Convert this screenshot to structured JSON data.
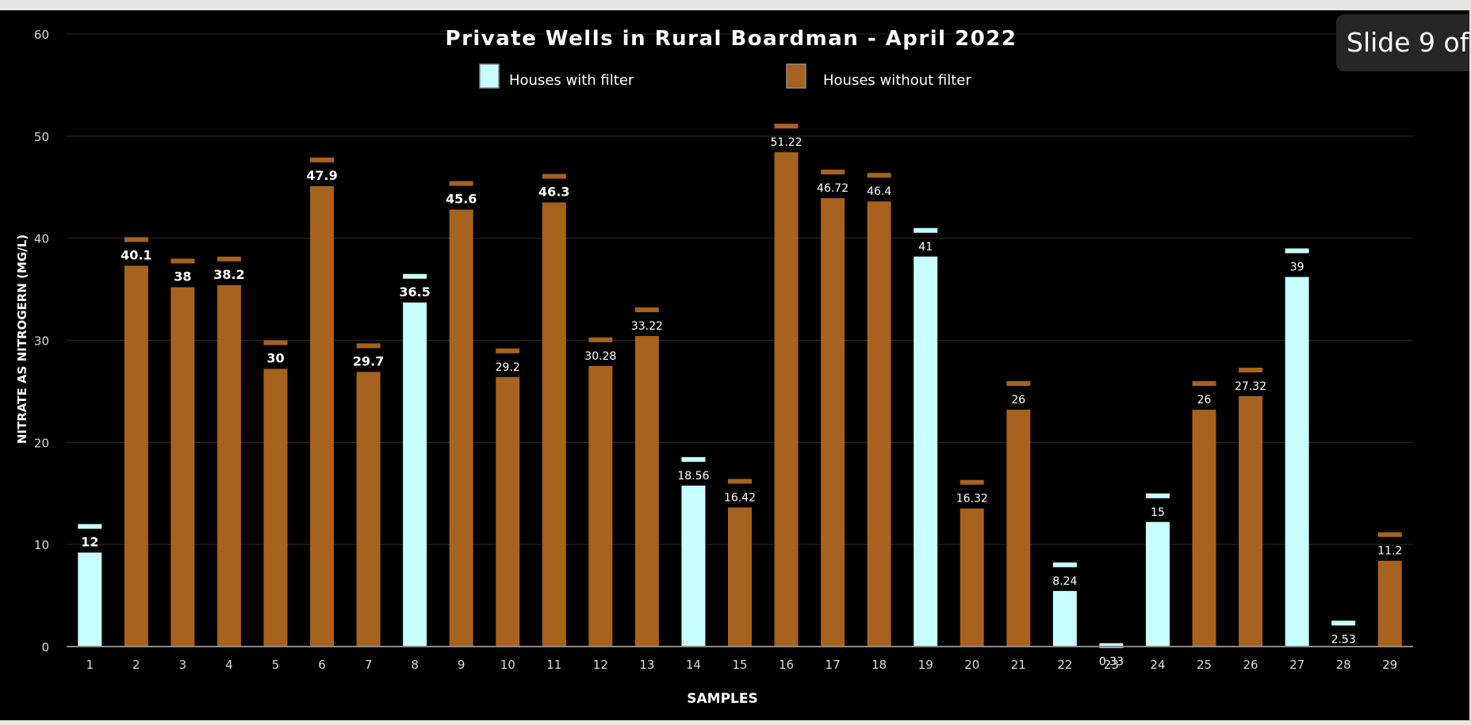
{
  "slide_indicator": "Slide 9 of",
  "colors": {
    "background": "#000000",
    "filter": "#c8ffff",
    "no_filter": "#a8621f",
    "text": "#ffffff",
    "axis_text": "#d9d9d9",
    "gridline": "#2a2a2a"
  },
  "chart_data": {
    "type": "bar",
    "title": "Private Wells in Rural Boardman - April 2022",
    "xlabel": "SAMPLES",
    "ylabel": "NITRATE AS NITROGERN  (MG/L)",
    "ylim": [
      0,
      60
    ],
    "yticks": [
      0,
      10,
      20,
      30,
      40,
      50,
      60
    ],
    "grid": true,
    "legend_position": "top",
    "legend": [
      {
        "key": "filter",
        "label": "Houses with filter"
      },
      {
        "key": "no_filter",
        "label": "Houses without filter"
      }
    ],
    "categories": [
      "1",
      "2",
      "3",
      "4",
      "5",
      "6",
      "7",
      "8",
      "9",
      "10",
      "11",
      "12",
      "13",
      "14",
      "15",
      "16",
      "17",
      "18",
      "19",
      "20",
      "21",
      "22",
      "23",
      "24",
      "25",
      "26",
      "27",
      "28",
      "29"
    ],
    "values": [
      12,
      40.1,
      38,
      38.2,
      30,
      47.9,
      29.7,
      36.5,
      45.6,
      29.2,
      46.3,
      30.28,
      33.22,
      18.56,
      16.42,
      51.22,
      46.72,
      46.4,
      41,
      16.32,
      26,
      8.24,
      0.33,
      15,
      26,
      27.32,
      39,
      2.53,
      11.2
    ],
    "data_labels": [
      "12",
      "40.1",
      "38",
      "38.2",
      "30",
      "47.9",
      "29.7",
      "36.5",
      "45.6",
      "29.2",
      "46.3",
      "30.28",
      "33.22",
      "18.56",
      "16.42",
      "51.22",
      "46.72",
      "46.4",
      "41",
      "16.32",
      "26",
      "8.24",
      "0.33",
      "15",
      "26",
      "27.32",
      "39",
      "2.53",
      "11.2"
    ],
    "series_key": [
      "filter",
      "no_filter",
      "no_filter",
      "no_filter",
      "no_filter",
      "no_filter",
      "no_filter",
      "filter",
      "no_filter",
      "no_filter",
      "no_filter",
      "no_filter",
      "no_filter",
      "filter",
      "no_filter",
      "no_filter",
      "no_filter",
      "no_filter",
      "filter",
      "no_filter",
      "no_filter",
      "filter",
      "filter",
      "filter",
      "no_filter",
      "no_filter",
      "filter",
      "filter",
      "no_filter"
    ],
    "label_style": [
      "bold",
      "bold",
      "bold",
      "bold",
      "bold",
      "bold",
      "bold",
      "bold",
      "bold",
      "normal",
      "bold",
      "normal",
      "normal",
      "normal",
      "normal",
      "normal",
      "normal",
      "normal",
      "normal",
      "normal",
      "normal",
      "normal",
      "normal",
      "normal",
      "normal",
      "normal",
      "normal",
      "normal",
      "normal"
    ]
  }
}
